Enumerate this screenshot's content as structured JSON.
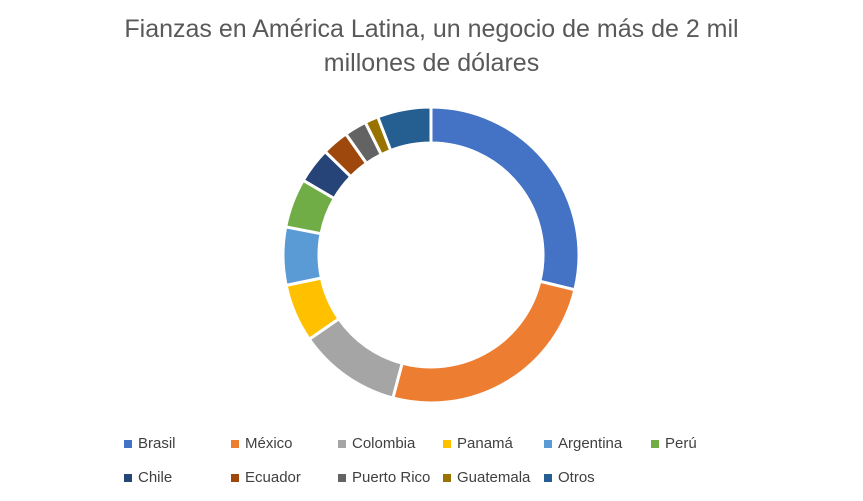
{
  "chart_data": {
    "type": "pie",
    "variant": "donut",
    "title_lines": [
      "Fianzas en América Latina, un negocio de más de 2 mil",
      "millones de dólares"
    ],
    "legend_position": "bottom",
    "categories": [
      "Brasil",
      "México",
      "Colombia",
      "Panamá",
      "Argentina",
      "Perú",
      "Chile",
      "Ecuador",
      "Puerto Rico",
      "Guatemala",
      "Otros"
    ],
    "values": [
      29.5,
      26.0,
      11.5,
      6.5,
      6.5,
      5.5,
      4.0,
      3.0,
      2.5,
      1.5,
      6.0
    ],
    "colors": [
      "#4472C4",
      "#ED7D31",
      "#A5A5A5",
      "#FFC000",
      "#5B9BD5",
      "#70AD47",
      "#264478",
      "#9E480E",
      "#636363",
      "#997300",
      "#255E91"
    ]
  }
}
